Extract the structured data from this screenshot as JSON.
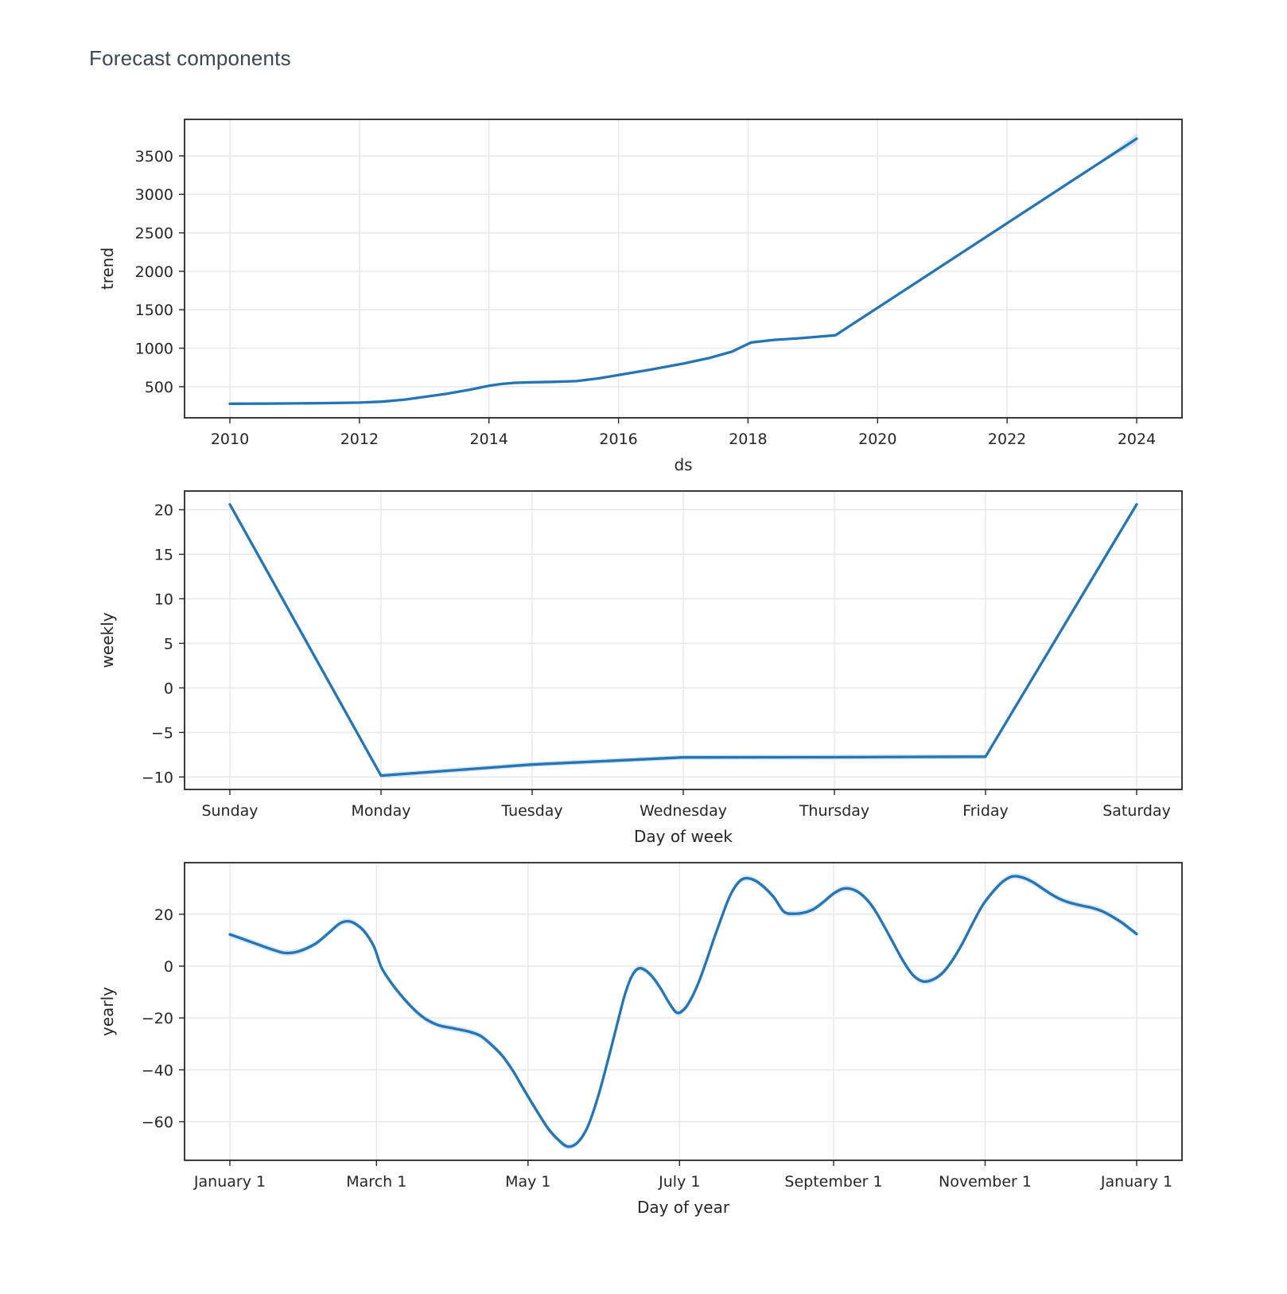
{
  "page": {
    "title": "Forecast components"
  },
  "colors": {
    "line": "#2575b5",
    "band": "#aecfe9",
    "text": "#262626",
    "grid": "#e8e8e8",
    "spine": "#262626",
    "title_text": "#3d4654",
    "background": "#ffffff"
  },
  "chart_data": [
    {
      "type": "line",
      "name": "trend",
      "xlabel": "ds",
      "ylabel": "trend",
      "xlim": [
        2009.3,
        2024.7
      ],
      "ylim": [
        95,
        3975
      ],
      "grid": true,
      "legend": "none",
      "smooth": false,
      "x_ticks": [
        {
          "v": 2010,
          "label": "2010"
        },
        {
          "v": 2012,
          "label": "2012"
        },
        {
          "v": 2014,
          "label": "2014"
        },
        {
          "v": 2016,
          "label": "2016"
        },
        {
          "v": 2018,
          "label": "2018"
        },
        {
          "v": 2020,
          "label": "2020"
        },
        {
          "v": 2022,
          "label": "2022"
        },
        {
          "v": 2024,
          "label": "2024"
        }
      ],
      "y_ticks": [
        {
          "v": 500,
          "label": "500"
        },
        {
          "v": 1000,
          "label": "1000"
        },
        {
          "v": 1500,
          "label": "1500"
        },
        {
          "v": 2000,
          "label": "2000"
        },
        {
          "v": 2500,
          "label": "2500"
        },
        {
          "v": 3000,
          "label": "3000"
        },
        {
          "v": 3500,
          "label": "3500"
        }
      ],
      "x": [
        2010.0,
        2010.5,
        2011.0,
        2011.5,
        2012.0,
        2012.35,
        2012.7,
        2013.0,
        2013.35,
        2013.7,
        2014.0,
        2014.2,
        2014.4,
        2014.7,
        2015.0,
        2015.35,
        2015.7,
        2016.0,
        2016.5,
        2017.0,
        2017.4,
        2017.75,
        2018.05,
        2018.4,
        2018.8,
        2019.35,
        2020.0,
        2021.0,
        2022.0,
        2023.0,
        2023.5,
        2024.0
      ],
      "y": [
        278,
        279,
        282,
        286,
        293,
        305,
        332,
        366,
        408,
        460,
        512,
        536,
        550,
        558,
        563,
        572,
        608,
        652,
        722,
        800,
        872,
        955,
        1075,
        1108,
        1130,
        1168,
        1525,
        2075,
        2625,
        3175,
        3450,
        3725
      ],
      "band": {
        "x": [
          2023.2,
          2023.4,
          2023.6,
          2023.8,
          2024.0
        ],
        "upper": [
          3292,
          3410,
          3532,
          3662,
          3790
        ],
        "lower": [
          3278,
          3380,
          3478,
          3568,
          3660
        ]
      }
    },
    {
      "type": "line",
      "name": "weekly",
      "xlabel": "Day of week",
      "ylabel": "weekly",
      "xlim": [
        -0.3,
        6.3
      ],
      "ylim": [
        -11.4,
        22.1
      ],
      "grid": true,
      "legend": "none",
      "smooth": false,
      "band_delta": 0.28,
      "x_ticks": [
        {
          "v": 0,
          "label": "Sunday"
        },
        {
          "v": 1,
          "label": "Monday"
        },
        {
          "v": 2,
          "label": "Tuesday"
        },
        {
          "v": 3,
          "label": "Wednesday"
        },
        {
          "v": 4,
          "label": "Thursday"
        },
        {
          "v": 5,
          "label": "Friday"
        },
        {
          "v": 6,
          "label": "Saturday"
        }
      ],
      "y_ticks": [
        {
          "v": -10,
          "label": "−10"
        },
        {
          "v": -5,
          "label": "−5"
        },
        {
          "v": 0,
          "label": "0"
        },
        {
          "v": 5,
          "label": "5"
        },
        {
          "v": 10,
          "label": "10"
        },
        {
          "v": 15,
          "label": "15"
        },
        {
          "v": 20,
          "label": "20"
        }
      ],
      "x": [
        0,
        1,
        2,
        3,
        4,
        5,
        6
      ],
      "y": [
        20.6,
        -9.85,
        -8.6,
        -7.8,
        -7.78,
        -7.72,
        20.6
      ]
    },
    {
      "type": "line",
      "name": "yearly",
      "xlabel": "Day of year",
      "ylabel": "yearly",
      "xlim": [
        -18.25,
        383.25
      ],
      "ylim": [
        -74.9,
        39.9
      ],
      "grid": true,
      "legend": "none",
      "smooth": true,
      "band_delta": 1.1,
      "x_ticks": [
        {
          "v": 0,
          "label": "January 1"
        },
        {
          "v": 59,
          "label": "March 1"
        },
        {
          "v": 120,
          "label": "May 1"
        },
        {
          "v": 181,
          "label": "July 1"
        },
        {
          "v": 243,
          "label": "September 1"
        },
        {
          "v": 304,
          "label": "November 1"
        },
        {
          "v": 365,
          "label": "January 1"
        }
      ],
      "y_ticks": [
        {
          "v": -60,
          "label": "−60"
        },
        {
          "v": -40,
          "label": "−40"
        },
        {
          "v": -20,
          "label": "−20"
        },
        {
          "v": 0,
          "label": "0"
        },
        {
          "v": 20,
          "label": "20"
        }
      ],
      "x": [
        0,
        6,
        12,
        18,
        22,
        26,
        30,
        35,
        40,
        44,
        47,
        50,
        54,
        58,
        61,
        65,
        70,
        75,
        79,
        84,
        90,
        96,
        101,
        106,
        110,
        114,
        118,
        123,
        128,
        132,
        136,
        140,
        144,
        148,
        152,
        156,
        159,
        162,
        165,
        169,
        173,
        177,
        180,
        183,
        186,
        189,
        192,
        195,
        198,
        201,
        204,
        207,
        211,
        215,
        219,
        223,
        227,
        231,
        235,
        239,
        243,
        247,
        251,
        255,
        259,
        263,
        267,
        271,
        275,
        279,
        283,
        287,
        291,
        295,
        299,
        303,
        307,
        311,
        315,
        319,
        323,
        327,
        331,
        335,
        339,
        343,
        347,
        351,
        355,
        359,
        362,
        365
      ],
      "y": [
        12.2,
        10.2,
        8.1,
        6.1,
        5.1,
        5.3,
        6.5,
        9.0,
        13.0,
        16.3,
        17.3,
        16.6,
        13.5,
        7.5,
        -0.5,
        -6.5,
        -12.5,
        -17.5,
        -20.5,
        -22.8,
        -24.0,
        -25.2,
        -27.0,
        -31.0,
        -35.0,
        -40.5,
        -47.0,
        -55.0,
        -62.5,
        -66.8,
        -69.6,
        -68.0,
        -62.0,
        -51.0,
        -37.0,
        -22.0,
        -11.0,
        -3.5,
        -0.8,
        -3.0,
        -8.0,
        -14.5,
        -18.0,
        -16.5,
        -12.0,
        -5.5,
        2.5,
        11.0,
        19.0,
        26.5,
        31.5,
        33.8,
        33.2,
        30.5,
        26.5,
        21.0,
        20.2,
        20.6,
        22.0,
        24.8,
        28.0,
        29.9,
        29.5,
        27.0,
        22.5,
        16.0,
        9.0,
        2.0,
        -3.5,
        -5.9,
        -5.2,
        -2.5,
        2.5,
        9.0,
        16.5,
        23.5,
        28.5,
        32.5,
        34.6,
        34.2,
        32.5,
        30.0,
        27.5,
        25.5,
        24.2,
        23.3,
        22.5,
        21.2,
        19.2,
        16.8,
        14.6,
        12.4
      ]
    }
  ]
}
